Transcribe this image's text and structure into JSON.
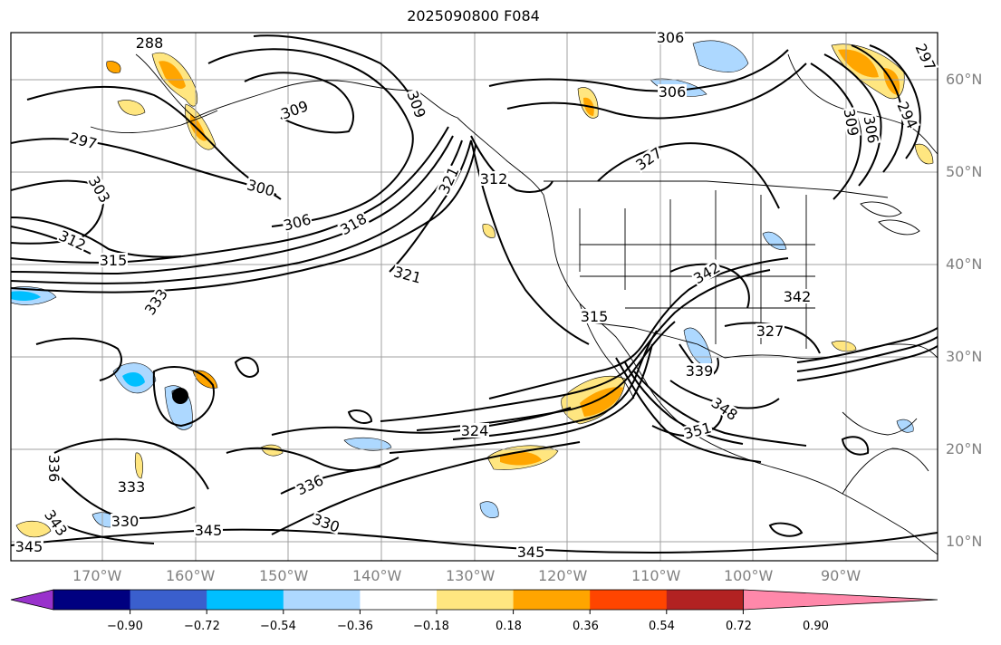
{
  "title": "2025090800 F084",
  "lon_labels": [
    "170°W",
    "160°W",
    "150°W",
    "140°W",
    "130°W",
    "120°W",
    "110°W",
    "100°W",
    "90°W"
  ],
  "lat_labels": [
    "60°N",
    "50°N",
    "40°N",
    "30°N",
    "20°N",
    "10°N"
  ],
  "contour_labels": [
    "288",
    "297",
    "303",
    "312",
    "315",
    "300",
    "306",
    "309",
    "309",
    "306",
    "318",
    "321",
    "321",
    "312",
    "327",
    "333",
    "330",
    "333",
    "336",
    "324",
    "345",
    "345",
    "345",
    "351",
    "348",
    "339",
    "342",
    "327",
    "315",
    "306",
    "294",
    "309",
    "306",
    "297",
    "330",
    "336",
    "343",
    "342"
  ],
  "colorbar": {
    "tick_labels": [
      "−0.90",
      "−0.72",
      "−0.54",
      "−0.36",
      "−0.18",
      "0.18",
      "0.36",
      "0.54",
      "0.72",
      "0.90"
    ],
    "colors": [
      "#9932cc",
      "#000080",
      "#3a5fcd",
      "#00bfff",
      "#add8ff",
      "#ffffff",
      "#ffe680",
      "#ffa500",
      "#ff4500",
      "#b22222",
      "#ff88aa"
    ]
  },
  "colors": {
    "contour": "#000000",
    "coast": "#000000",
    "grid": "#a0a0a0",
    "positive_light": "#ffe680",
    "positive_mid": "#ffa500",
    "negative_light": "#add8ff",
    "negative_mid": "#00bfff"
  }
}
